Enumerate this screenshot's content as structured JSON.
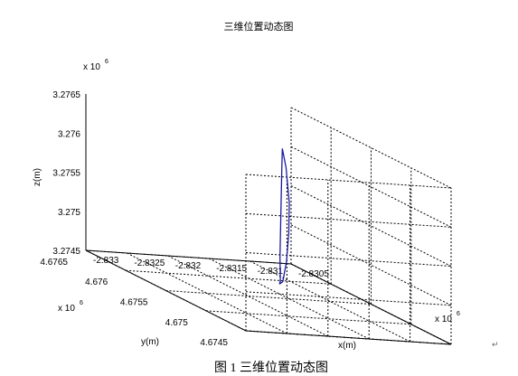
{
  "chart_data": {
    "type": "line",
    "title": "三维位置动态图",
    "xlabel": "x(m)",
    "ylabel": "y(m)",
    "zlabel": "z(m)",
    "x_multiplier": "x 10",
    "y_multiplier": "x 10",
    "z_multiplier": "x 10",
    "multiplier_exponent": "6",
    "grid": true,
    "xlim": [
      -2.833,
      -2.8305
    ],
    "ylim": [
      4.6745,
      4.6765
    ],
    "zlim": [
      3.2745,
      3.2765
    ],
    "x_ticks": [
      "-2.833",
      "-2.8325",
      "-2.832",
      "-2.8315",
      "-2.831",
      "-2.8305"
    ],
    "y_ticks": [
      "4.6745",
      "4.675",
      "4.6755",
      "4.676",
      "4.6765"
    ],
    "z_ticks": [
      "3.2745",
      "3.275",
      "3.2755",
      "3.276",
      "3.2765"
    ],
    "series_color": "#1a1aa0",
    "series": [
      {
        "x": [
          -2.83225,
          -2.83222,
          -2.832,
          -2.8317,
          -2.8314,
          -2.8311,
          -2.83087,
          -2.83085,
          -2.831,
          -2.83135,
          -2.83165,
          -2.83195,
          -2.83218,
          -2.83225
        ],
        "y": [
          4.67485,
          4.67487,
          4.6751,
          4.6754,
          4.6757,
          4.676,
          4.67623,
          4.67625,
          4.67605,
          4.67565,
          4.67535,
          4.67507,
          4.67488,
          4.67485
        ],
        "z": [
          3.27497,
          3.275,
          3.2752,
          3.27546,
          3.27572,
          3.27596,
          3.27609,
          3.27608,
          3.27593,
          3.27566,
          3.2754,
          3.27516,
          3.27499,
          3.27497
        ]
      }
    ]
  },
  "caption": "图 1  三维位置动态图",
  "paragraph_mark": "↵"
}
